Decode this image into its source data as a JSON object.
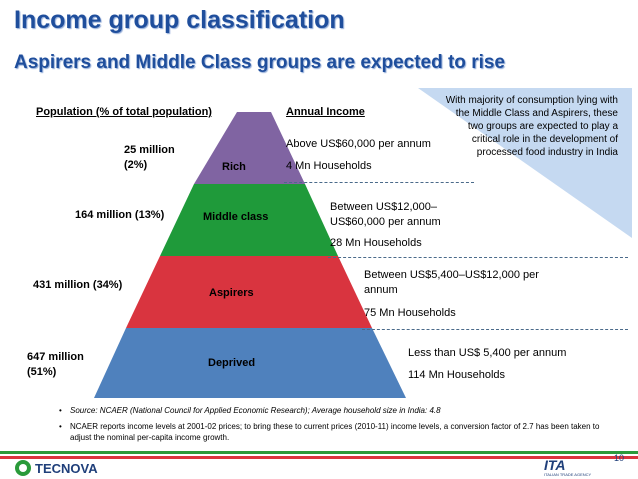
{
  "title": "Income group classification",
  "subtitle": "Aspirers and Middle Class groups are expected to rise",
  "headers": {
    "population": "Population (% of total population)",
    "income": "Annual Income"
  },
  "note": "With majority of consumption lying with the Middle Class and Aspirers, these two groups are expected to play a critical role in the development of processed food industry in India",
  "tiers": [
    {
      "name": "Rich",
      "population": [
        "25 million",
        "(2%)"
      ],
      "income": "Above US$60,000 per annum",
      "households": "4 Mn Households",
      "color": "#8064a2"
    },
    {
      "name": "Middle class",
      "population": [
        "164 million (13%)"
      ],
      "income": "Between US$12,000–US$60,000 per annum",
      "households": "28 Mn Households",
      "color": "#1f9a3a"
    },
    {
      "name": "Aspirers",
      "population": [
        "431 million (34%)"
      ],
      "income": "Between US$5,400–US$12,000 per annum",
      "households": "75 Mn Households",
      "color": "#d9343f"
    },
    {
      "name": "Deprived",
      "population": [
        "647 million",
        "(51%)"
      ],
      "income": "Less than US$ 5,400 per annum",
      "households": "114 Mn Households",
      "color": "#4f81bd"
    }
  ],
  "footnotes": [
    "Source: NCAER (National Council for Applied Economic Research); Average household size in India: 4.8",
    "NCAER reports income levels at 2001-02 prices; to bring these to current prices (2010-11) income levels, a conversion factor of 2.7 has been taken to adjust the nominal per-capita income growth."
  ],
  "footer": {
    "left_logo": "TECNOVA",
    "right_logo": "ITA",
    "right_logo_sub": "ITALIAN TRADE AGENCY",
    "page": "10"
  }
}
